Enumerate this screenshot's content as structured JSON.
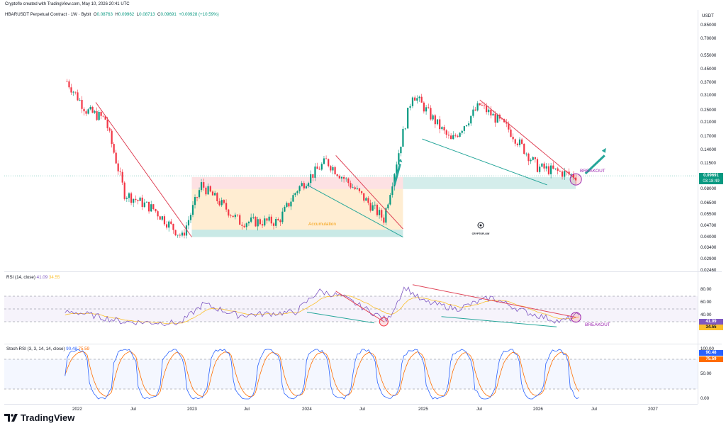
{
  "header": {
    "created_by": "Cryptoflo created with TradingView.com, May 10, 2026 20:41 UTC"
  },
  "symbol": {
    "title": "HBARUSDT Perpetual Contract · 1W · Bybit",
    "open_label": "O",
    "open": "0.08763",
    "high_label": "H",
    "high": "0.09962",
    "low_label": "L",
    "low": "0.08713",
    "close_label": "C",
    "close": "0.09691",
    "change": "+0.00928 (+10.59%)"
  },
  "currency": "USDT",
  "price_axis": [
    "0.85000",
    "0.70000",
    "0.55000",
    "0.45000",
    "0.37000",
    "0.31000",
    "0.25000",
    "0.21000",
    "0.17000",
    "0.14000",
    "0.11500",
    "0.08000",
    "0.06500",
    "0.05500",
    "0.04700",
    "0.04000",
    "0.03400",
    "0.02900",
    "0.02460"
  ],
  "price_tag": {
    "price": "0.09691",
    "countdown": "03:18:49"
  },
  "annotations": {
    "accumulation": "Accumulation",
    "breakout_price": "BREAKOUT",
    "breakout_rsi": "BREAKOUT",
    "watermark": "CRYPTOFLOW"
  },
  "rsi": {
    "label": "RSI (14, close)",
    "value": "41.09",
    "ma": "34.55",
    "axis": [
      "80.00",
      "60.00",
      "40.00",
      "20.00"
    ],
    "tag_value": "41.09",
    "tag_ma": "34.55"
  },
  "stoch": {
    "label": "Stoch RSI (3, 3, 14, 14, close)",
    "k": "90.48",
    "d": "75.59",
    "axis": [
      "100.00",
      "50.00",
      "0.00"
    ],
    "tag_k": "90.48",
    "tag_d": "75.59"
  },
  "time_axis": [
    "2022",
    "Jul",
    "2023",
    "Jul",
    "2024",
    "Jul",
    "2025",
    "Jul",
    "2026",
    "Jul",
    "2027"
  ],
  "brand": "TradingView",
  "colors": {
    "up": "#089981",
    "down": "#f23645",
    "rsi_line": "#7e57c2",
    "rsi_ma": "#fbc02d",
    "stoch_k": "#2962ff",
    "stoch_d": "#ff6d00",
    "trendline_red": "#e0475a",
    "trendline_green": "#26a69a",
    "accent": "#9c27b0"
  },
  "chart_data": [
    {
      "type": "candlestick",
      "title": "HBARUSDT Perpetual Contract · 1W · Bybit",
      "scale": "log",
      "ylim": [
        0.0246,
        0.85
      ],
      "x_labels": [
        "2022",
        "Jul",
        "2023",
        "Jul",
        "2024",
        "Jul",
        "2025",
        "Jul",
        "2026",
        "Jul",
        "2027"
      ],
      "approx_closes": [
        {
          "t": "2021-12",
          "price": 0.38
        },
        {
          "t": "2022-02",
          "price": 0.25
        },
        {
          "t": "2022-04",
          "price": 0.22
        },
        {
          "t": "2022-06",
          "price": 0.075
        },
        {
          "t": "2022-09",
          "price": 0.06
        },
        {
          "t": "2022-12",
          "price": 0.04
        },
        {
          "t": "2023-02",
          "price": 0.085
        },
        {
          "t": "2023-06",
          "price": 0.05
        },
        {
          "t": "2023-10",
          "price": 0.05
        },
        {
          "t": "2023-12",
          "price": 0.08
        },
        {
          "t": "2024-03",
          "price": 0.12
        },
        {
          "t": "2024-06",
          "price": 0.08
        },
        {
          "t": "2024-09",
          "price": 0.052
        },
        {
          "t": "2024-11",
          "price": 0.18
        },
        {
          "t": "2024-12",
          "price": 0.32
        },
        {
          "t": "2025-04",
          "price": 0.16
        },
        {
          "t": "2025-07",
          "price": 0.27
        },
        {
          "t": "2025-10",
          "price": 0.19
        },
        {
          "t": "2026-01",
          "price": 0.11
        },
        {
          "t": "2026-05",
          "price": 0.09691
        }
      ]
    },
    {
      "type": "line",
      "title": "RSI (14, close)",
      "ylim": [
        0,
        100
      ],
      "series": [
        {
          "name": "RSI",
          "last": 41.09
        },
        {
          "name": "RSI MA",
          "last": 34.55
        }
      ]
    },
    {
      "type": "line",
      "title": "Stoch RSI (3, 3, 14, 14, close)",
      "ylim": [
        0,
        100
      ],
      "series": [
        {
          "name": "K",
          "last": 90.48
        },
        {
          "name": "D",
          "last": 75.59
        }
      ]
    }
  ]
}
